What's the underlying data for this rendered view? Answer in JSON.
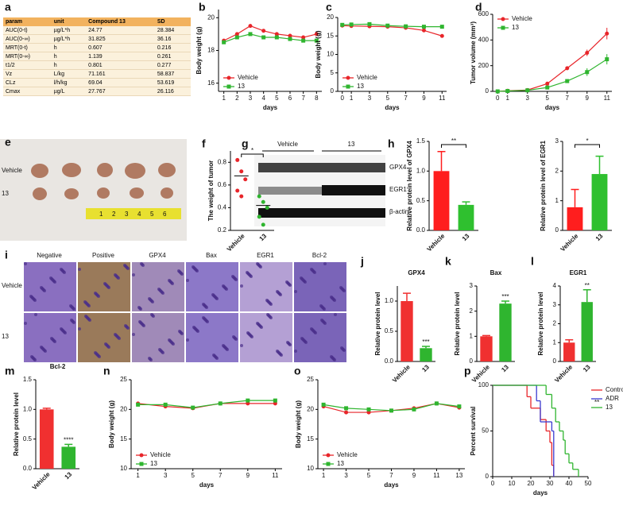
{
  "panel_labels": [
    "a",
    "b",
    "c",
    "d",
    "e",
    "f",
    "g",
    "h",
    "i",
    "j",
    "k",
    "l",
    "m",
    "n",
    "o",
    "p"
  ],
  "table": {
    "header": [
      "param",
      "unit",
      "Compound 13",
      "SD"
    ],
    "rows": [
      [
        "AUC(0-t)",
        "µg/L*h",
        "24.77",
        "28.384"
      ],
      [
        "AUC(0-∞)",
        "µg/L*h",
        "31.825",
        "36.16"
      ],
      [
        "MRT(0-t)",
        "h",
        "0.607",
        "0.216"
      ],
      [
        "MRT(0-∞)",
        "h",
        "1.139",
        "0.261"
      ],
      [
        "t1/2",
        "h",
        "0.801",
        "0.277"
      ],
      [
        "Vz",
        "L/kg",
        "71.161",
        "58.837"
      ],
      [
        "CLz",
        "l/h/kg",
        "69.04",
        "53.619"
      ],
      [
        "Cmax",
        "µg/L",
        "27.767",
        "26.116"
      ]
    ]
  },
  "images": {
    "e": {
      "rows": [
        "Vehicle",
        "13"
      ],
      "ruler": [
        "1",
        "2",
        "3",
        "4",
        "5",
        "6"
      ]
    },
    "g": {
      "groups": [
        "Vehicle",
        "13"
      ],
      "bands": [
        "GPX4",
        "EGR1",
        "β-actin"
      ]
    },
    "i": {
      "columns": [
        "Negative",
        "Positive",
        "GPX4",
        "Bax",
        "EGR1",
        "Bcl-2"
      ],
      "rows": [
        "Vehicle",
        "13"
      ]
    }
  },
  "chart_data": [
    {
      "type": "line",
      "ylabel": "Body weight (g)",
      "xlabel": "days",
      "x": [
        1,
        2,
        3,
        4,
        5,
        6,
        7,
        8
      ],
      "xlim": [
        0.6,
        8.4
      ],
      "xticks": [
        1,
        2,
        3,
        4,
        5,
        6,
        7,
        8
      ],
      "ylim": [
        15.5,
        20.5
      ],
      "yticks": [
        16,
        18,
        20
      ],
      "legend": "lower left",
      "series": [
        {
          "name": "Vehicle",
          "color": "#e8252a",
          "values": [
            18.6,
            19.0,
            19.5,
            19.2,
            19.0,
            18.9,
            18.8,
            19.0
          ]
        },
        {
          "name": "13",
          "color": "#2fb52f",
          "values": [
            18.5,
            18.8,
            19.0,
            18.8,
            18.8,
            18.7,
            18.6,
            18.6
          ]
        }
      ]
    },
    {
      "type": "line",
      "ylabel": "Body weight (g)",
      "xlabel": "days",
      "x": [
        0,
        1,
        3,
        5,
        7,
        9,
        11
      ],
      "xlim": [
        -0.5,
        11.5
      ],
      "xticks": [
        0,
        1,
        3,
        5,
        7,
        9,
        11
      ],
      "ylim": [
        0,
        20
      ],
      "yticks": [
        0,
        5,
        10,
        15,
        20
      ],
      "legend": "lower left",
      "series": [
        {
          "name": "Vehicle",
          "color": "#e8252a",
          "values": [
            17.8,
            17.7,
            17.6,
            17.5,
            17.2,
            16.5,
            15.0
          ]
        },
        {
          "name": "13",
          "color": "#2fb52f",
          "values": [
            18.0,
            18.1,
            18.2,
            17.8,
            17.6,
            17.5,
            17.5
          ]
        }
      ]
    },
    {
      "type": "line",
      "ylabel": "Tumor volume (mm³)",
      "xlabel": "days",
      "x": [
        0,
        1,
        3,
        5,
        7,
        9,
        11
      ],
      "xlim": [
        -0.5,
        11.5
      ],
      "xticks": [
        0,
        1,
        3,
        5,
        7,
        9,
        11
      ],
      "ylim": [
        0,
        600
      ],
      "yticks": [
        0,
        200,
        400,
        600
      ],
      "legend": "upper left",
      "series": [
        {
          "name": "Vehicle",
          "color": "#e8252a",
          "values": [
            0,
            5,
            10,
            60,
            180,
            300,
            450
          ],
          "errors": [
            0,
            2,
            5,
            10,
            15,
            25,
            45
          ]
        },
        {
          "name": "13",
          "color": "#2fb52f",
          "values": [
            0,
            3,
            8,
            30,
            80,
            150,
            250
          ],
          "errors": [
            0,
            2,
            4,
            8,
            15,
            30,
            40
          ]
        }
      ]
    },
    {
      "type": "strip",
      "ylabel": "The weight of tumor",
      "categories": [
        "Vehicle",
        "13"
      ],
      "colors": [
        "#e8252a",
        "#2fb52f"
      ],
      "points": [
        [
          0.82,
          0.72,
          0.65,
          0.55,
          0.5
        ],
        [
          0.5,
          0.45,
          0.4,
          0.32,
          0.25
        ]
      ],
      "means": [
        0.68,
        0.42
      ],
      "ylim": [
        0.2,
        0.9
      ],
      "yticks": [
        0.2,
        0.4,
        0.6,
        0.8
      ],
      "annotation": "*",
      "bracket": true
    },
    {
      "type": "bar",
      "ylabel": "Relative protein level of GPX4",
      "categories": [
        "Vehicle",
        "13"
      ],
      "colors": [
        "#ff1e1e",
        "#2fc02f"
      ],
      "values": [
        1.0,
        0.43
      ],
      "errors": [
        0.33,
        0.05
      ],
      "ylim": [
        0,
        1.5
      ],
      "yticks": [
        {
          "value": 0,
          "label": "0.0"
        },
        {
          "value": 0.5,
          "label": "0.5"
        },
        {
          "value": 1,
          "label": "1.0"
        },
        {
          "value": 1.5,
          "label": "1.5"
        }
      ],
      "annotation": "**",
      "bracket": true
    },
    {
      "type": "bar",
      "ylabel": "Relative protein level of EGR1",
      "categories": [
        "Vehicle",
        "13"
      ],
      "colors": [
        "#ff1e1e",
        "#2fc02f"
      ],
      "values": [
        0.78,
        1.9
      ],
      "errors": [
        0.6,
        0.6
      ],
      "ylim": [
        0,
        3
      ],
      "yticks": [
        0,
        1,
        2,
        3
      ],
      "annotation": "*",
      "bracket": true
    },
    {
      "type": "bar",
      "title": "GPX4",
      "ylabel": "Relative protein level",
      "categories": [
        "Vehicle",
        "13"
      ],
      "colors": [
        "#f03030",
        "#2fb52f"
      ],
      "values": [
        1.0,
        0.22
      ],
      "errors": [
        0.13,
        0.03
      ],
      "ylim": [
        0,
        1.25
      ],
      "yticks": [
        {
          "value": 0,
          "label": "0.0"
        },
        {
          "value": 0.5,
          "label": "0.5"
        },
        {
          "value": 1,
          "label": "1.0"
        }
      ],
      "annotation": "***",
      "bracket": false
    },
    {
      "type": "bar",
      "title": "Bax",
      "ylabel": "Relative protein level",
      "categories": [
        "Vehicle",
        "13"
      ],
      "colors": [
        "#f03030",
        "#2fb52f"
      ],
      "values": [
        1.0,
        2.3
      ],
      "errors": [
        0.03,
        0.1
      ],
      "ylim": [
        0,
        3
      ],
      "yticks": [
        0,
        1,
        2,
        3
      ],
      "annotation": "***",
      "bracket": false
    },
    {
      "type": "bar",
      "title": "EGR1",
      "ylabel": "Relative protein level",
      "categories": [
        "Vehicle",
        "13"
      ],
      "colors": [
        "#f03030",
        "#2fb52f"
      ],
      "values": [
        1.0,
        3.15
      ],
      "errors": [
        0.15,
        0.65
      ],
      "ylim": [
        0,
        4
      ],
      "yticks": [
        0,
        1,
        2,
        3,
        4
      ],
      "annotation": "**",
      "bracket": false
    },
    {
      "type": "bar",
      "title": "Bcl-2",
      "ylabel": "Relative protein level",
      "categories": [
        "Vehicle",
        "13"
      ],
      "colors": [
        "#f03030",
        "#2fb52f"
      ],
      "values": [
        1.0,
        0.37
      ],
      "errors": [
        0.02,
        0.04
      ],
      "ylim": [
        0,
        1.5
      ],
      "yticks": [
        {
          "value": 0,
          "label": "0.0"
        },
        {
          "value": 0.5,
          "label": "0.5"
        },
        {
          "value": 1,
          "label": "1.0"
        },
        {
          "value": 1.5,
          "label": "1.5"
        }
      ],
      "annotation": "****",
      "bracket": false
    },
    {
      "type": "line",
      "ylabel": "Body weight (g)",
      "xlabel": "days",
      "x": [
        1,
        3,
        5,
        7,
        9,
        11
      ],
      "xlim": [
        0.5,
        11.5
      ],
      "xticks": [
        1,
        3,
        5,
        7,
        9,
        11
      ],
      "ylim": [
        10,
        25
      ],
      "yticks": [
        10,
        15,
        20,
        25
      ],
      "legend": "lower left",
      "series": [
        {
          "name": "Vehicle",
          "color": "#e8252a",
          "values": [
            21,
            20.5,
            20.2,
            21,
            21,
            21
          ]
        },
        {
          "name": "13",
          "color": "#2fb52f",
          "values": [
            20.8,
            20.8,
            20.3,
            21,
            21.5,
            21.5
          ]
        }
      ]
    },
    {
      "type": "line",
      "ylabel": "Body weight (g)",
      "xlabel": "days",
      "x": [
        1,
        3,
        5,
        7,
        9,
        11,
        13
      ],
      "xlim": [
        0.5,
        13.5
      ],
      "xticks": [
        1,
        3,
        5,
        7,
        9,
        11,
        13
      ],
      "ylim": [
        10,
        25
      ],
      "yticks": [
        10,
        15,
        20,
        25
      ],
      "legend": "lower left",
      "series": [
        {
          "name": "Vehicle",
          "color": "#e8252a",
          "values": [
            20.5,
            19.5,
            19.5,
            19.8,
            20.2,
            21,
            20.3
          ]
        },
        {
          "name": "13",
          "color": "#2fb52f",
          "values": [
            20.8,
            20.2,
            20,
            19.8,
            20,
            21,
            20.5
          ]
        }
      ]
    },
    {
      "type": "step",
      "ylabel": "Percent survival",
      "xlabel": "days",
      "xlim": [
        0,
        50
      ],
      "xticks": [
        0,
        10,
        20,
        30,
        40,
        50
      ],
      "ylim": [
        0,
        100
      ],
      "yticks": [
        0,
        50,
        100
      ],
      "legend": "upper right",
      "annotation": "**",
      "series": [
        {
          "name": "Control",
          "color": "#e8252a",
          "x": [
            0,
            18,
            20,
            25,
            28,
            30,
            31,
            32
          ],
          "values": [
            100,
            87.5,
            75,
            62.5,
            50,
            37.5,
            12.5,
            0
          ]
        },
        {
          "name": "ADR",
          "color": "#3a3ad0",
          "x": [
            0,
            23,
            25,
            31,
            32
          ],
          "values": [
            100,
            83,
            60,
            50,
            0
          ]
        },
        {
          "name": "13",
          "color": "#2fb52f",
          "x": [
            0,
            28,
            31,
            33,
            35,
            37,
            38,
            40,
            42,
            45
          ],
          "values": [
            100,
            90,
            75,
            60,
            50,
            40,
            25,
            15,
            8,
            0
          ]
        }
      ]
    }
  ]
}
